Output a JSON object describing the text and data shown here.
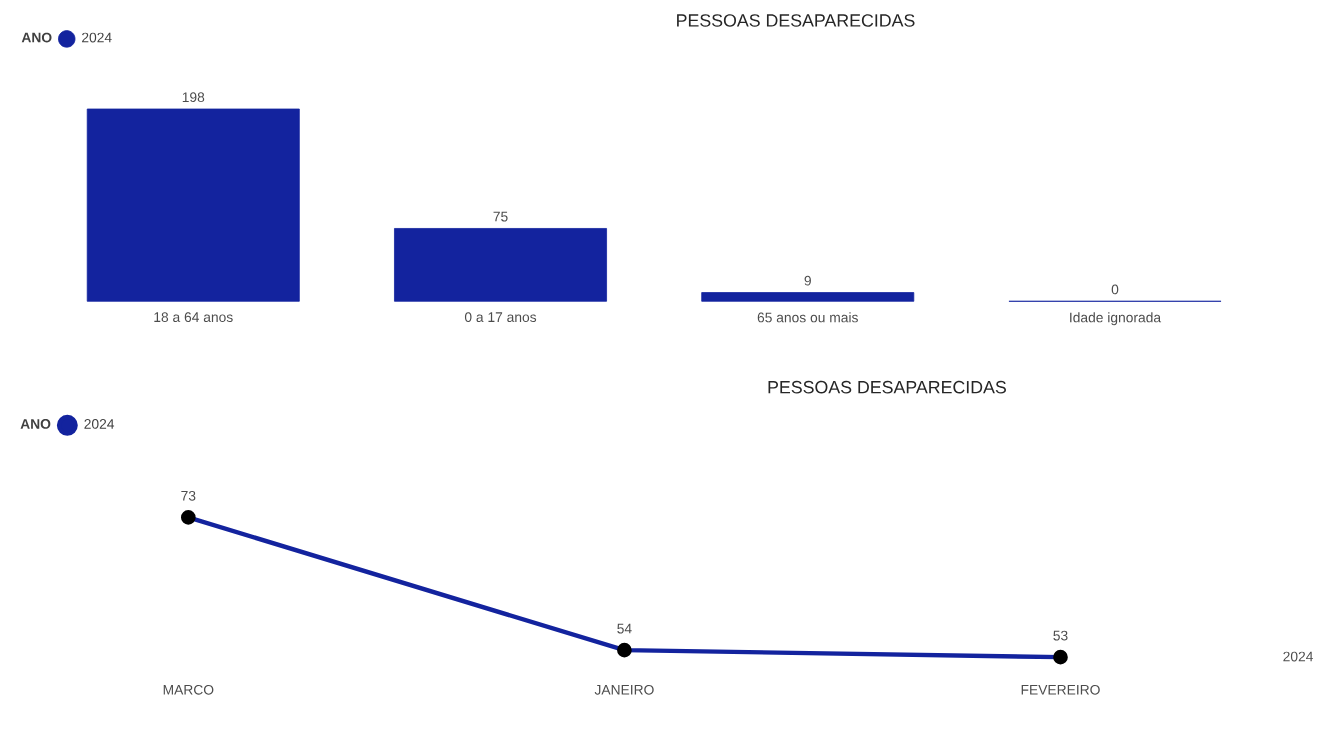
{
  "chart_data": [
    {
      "type": "bar",
      "title": "PESSOAS DESAPARECIDAS",
      "legend_title": "ANO",
      "legend": "top left",
      "data_labels": true,
      "categories": [
        "18 a 64 anos",
        "0 a 17 anos",
        "65 anos ou mais",
        "Idade ignorada"
      ],
      "series": [
        {
          "name": "2024",
          "color": "#13239e",
          "values": [
            198,
            75,
            9,
            0
          ]
        }
      ]
    },
    {
      "type": "line",
      "title": "PESSOAS DESAPARECIDAS",
      "legend_title": "ANO",
      "legend": "top left",
      "data_labels": true,
      "marker": "circle",
      "line_style": "solid",
      "xlabel": "2024",
      "categories": [
        "MARCO",
        "JANEIRO",
        "FEVEREIRO"
      ],
      "series": [
        {
          "name": "2024",
          "color": "#13239e",
          "values": [
            73,
            54,
            53
          ]
        }
      ]
    }
  ]
}
